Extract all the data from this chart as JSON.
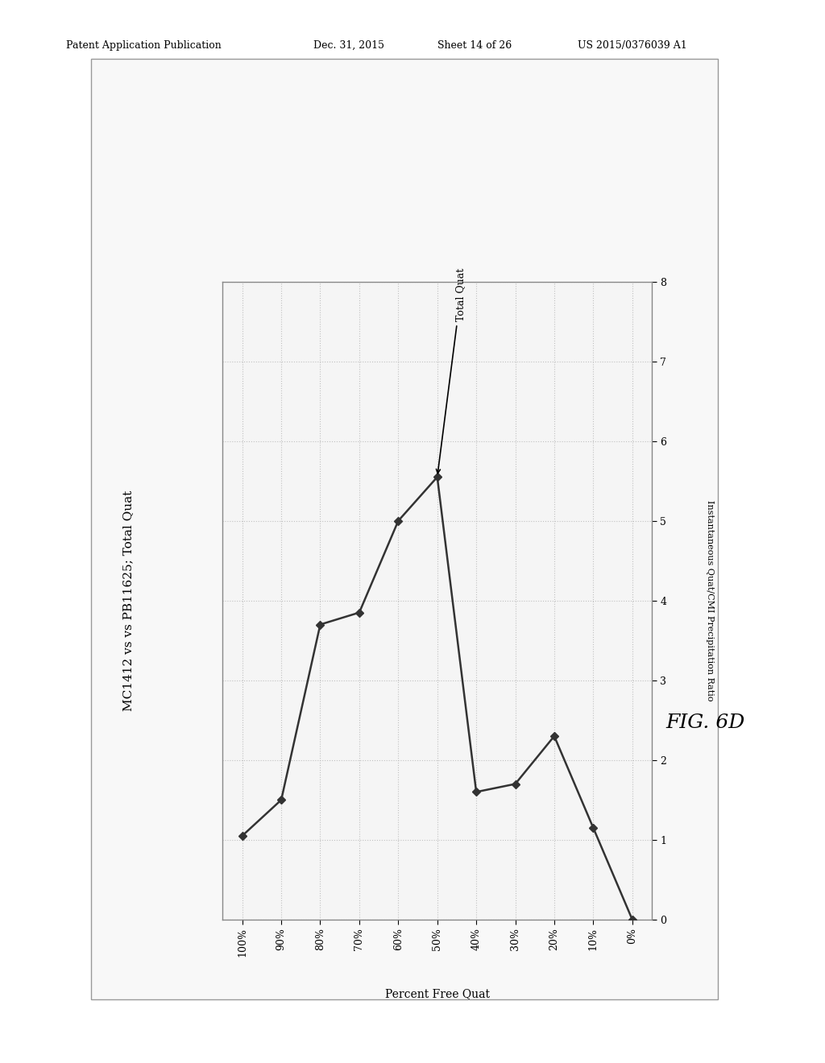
{
  "title_left": "MC1412 vs vs PB11625; Total Quat",
  "xlabel": "Percent Free Quat",
  "ylabel_right": "Instantaneous Quat/CMI Precipitation Ratio",
  "fig_label": "FIG. 6D",
  "legend_label": "Total Quat",
  "x_labels": [
    "100%",
    "90%",
    "80%",
    "70%",
    "60%",
    "50%",
    "40%",
    "30%",
    "20%",
    "10%",
    "0%"
  ],
  "x_values": [
    100,
    90,
    80,
    70,
    60,
    50,
    40,
    30,
    20,
    10,
    0
  ],
  "y_values": [
    1.05,
    1.5,
    3.7,
    3.85,
    5.0,
    5.55,
    1.6,
    1.7,
    2.3,
    1.15,
    0.0
  ],
  "y_min": 0,
  "y_max": 8,
  "y_ticks": [
    0,
    1,
    2,
    3,
    4,
    5,
    6,
    7,
    8
  ],
  "line_color": "#333333",
  "marker_style": "D",
  "marker_size": 5,
  "background_color": "#ffffff",
  "plot_bg_color": "#f5f5f5",
  "grid_color": "#bbbbbb",
  "border_color": "#888888",
  "header1": "Patent Application Publication",
  "header2": "Dec. 31, 2015",
  "header3": "Sheet 14 of 26",
  "header4": "US 2015/0376039 A1"
}
